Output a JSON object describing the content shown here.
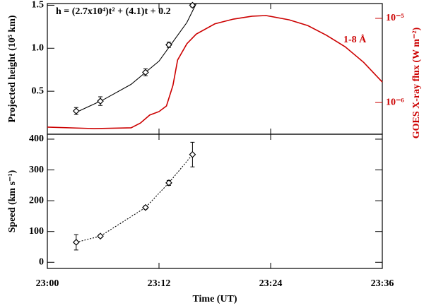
{
  "chart_data": [
    {
      "type": "line",
      "ylabel": "Projected height (10⁵ km)",
      "y2label": "GOES X-ray flux (W m⁻²)",
      "annotation": "h = (2.7x10⁴)t² + (4.1)t + 0.2",
      "xlim": [
        0,
        36
      ],
      "xticks": [
        0,
        12,
        24,
        36
      ],
      "ylim": [
        0,
        1.52
      ],
      "yticks": [
        0.5,
        {
          "value": 1,
          "label": "1.0"
        },
        1.5
      ],
      "y2lim": [
        4.2e-07,
        1.5e-05
      ],
      "y2log": true,
      "y2ticks": [
        {
          "value": 1e-05,
          "label": "10⁻⁵"
        },
        {
          "value": 1e-06,
          "label": "10⁻⁶"
        }
      ],
      "series": [
        {
          "color": "#000000",
          "style": "line",
          "x": [
            3,
            6,
            9,
            12,
            15,
            16
          ],
          "values": [
            0.25,
            0.4,
            0.58,
            0.85,
            1.3,
            1.52
          ]
        },
        {
          "color": "#000000",
          "style": "points",
          "x": [
            3.1,
            5.7,
            10.55,
            13.06,
            15.6
          ],
          "values": [
            0.27,
            0.385,
            0.72,
            1.04,
            1.5
          ],
          "errors": [
            0.04,
            0.05,
            0.04,
            0.03,
            0.02
          ]
        },
        {
          "name": "1-8 Å",
          "color": "#cc0000",
          "style": "line",
          "axis": "y2",
          "x": [
            0,
            5,
            9,
            10,
            11,
            12,
            12.8,
            13.5,
            14,
            15,
            16,
            18,
            20,
            22,
            23.5,
            26,
            28,
            30,
            32,
            34,
            36
          ],
          "values": [
            5.1e-07,
            4.9e-07,
            5e-07,
            5.7e-07,
            7.1e-07,
            7.8e-07,
            9.1e-07,
            1.6e-06,
            3.2e-06,
            5e-06,
            6.5e-06,
            8.6e-06,
            9.8e-06,
            1.06e-05,
            1.08e-05,
            9.6e-06,
            8.2e-06,
            6.3e-06,
            4.6e-06,
            3e-06,
            1.75e-06
          ]
        }
      ]
    },
    {
      "type": "line",
      "ylabel": "Speed (km s⁻¹)",
      "xlabel": "Time (UT)",
      "xlim": [
        0,
        36
      ],
      "xticks": [
        {
          "value": 0,
          "label": "23:00"
        },
        {
          "value": 12,
          "label": "23:12"
        },
        {
          "value": 24,
          "label": "23:24"
        },
        {
          "value": 36,
          "label": "23:36"
        }
      ],
      "ylim": [
        -20,
        416
      ],
      "yticks": [
        0,
        100,
        200,
        300,
        400
      ],
      "series": [
        {
          "color": "#000000",
          "style": "points",
          "dash": true,
          "x": [
            3.1,
            5.7,
            10.55,
            13.06,
            15.6
          ],
          "values": [
            65,
            85,
            178,
            258,
            350
          ],
          "errors": [
            25,
            5,
            5,
            8,
            40
          ]
        }
      ]
    }
  ]
}
